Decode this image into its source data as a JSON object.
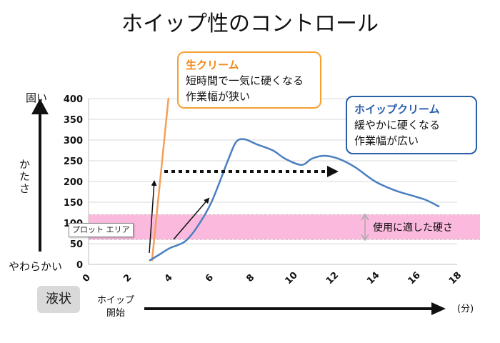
{
  "title": "ホイップ性のコントロール",
  "callouts": {
    "fresh_cream": {
      "heading": "生クリーム",
      "line1": "短時間で一気に硬くなる",
      "line2": "作業幅が狭い"
    },
    "whip_cream": {
      "heading": "ホイップクリーム",
      "line1": "緩やかに硬くなる",
      "line2": "作業幅が広い"
    }
  },
  "side_labels": {
    "hard": "固い",
    "hardness": "かたさ",
    "soft": "やわらかい",
    "liquid": "液状"
  },
  "x_axis_labels": {
    "start": "ホイップ\n開始",
    "unit": "(分)"
  },
  "plot_area_tooltip": "プロット エリア",
  "band_label": "使用に適した硬さ",
  "chart_data": {
    "type": "line",
    "title": "ホイップ性のコントロール",
    "xlim": [
      0,
      18
    ],
    "ylim": [
      0,
      400
    ],
    "x_ticks": [
      0,
      2,
      4,
      6,
      8,
      10,
      12,
      14,
      16,
      18
    ],
    "y_ticks": [
      0,
      50,
      100,
      150,
      200,
      250,
      300,
      350,
      400
    ],
    "grid": true,
    "band": {
      "from": 60,
      "to": 120,
      "label": "使用に適した硬さ",
      "color": "#fbb9de"
    },
    "series": [
      {
        "name": "生クリーム",
        "color": "#f4a05a",
        "x": [
          3.1,
          3.9
        ],
        "y": [
          10,
          400
        ]
      },
      {
        "name": "ホイップクリーム",
        "color": "#4a7fc0",
        "x": [
          3.0,
          3.5,
          4.0,
          4.7,
          5.3,
          6.0,
          6.8,
          7.2,
          7.6,
          8.2,
          9.0,
          9.6,
          10.4,
          10.9,
          11.5,
          12.2,
          13.0,
          14.0,
          15.0,
          16.0,
          16.5,
          17.1
        ],
        "y": [
          10,
          25,
          40,
          55,
          90,
          150,
          250,
          295,
          302,
          290,
          275,
          255,
          240,
          255,
          262,
          255,
          235,
          200,
          178,
          163,
          155,
          140
        ]
      }
    ]
  }
}
